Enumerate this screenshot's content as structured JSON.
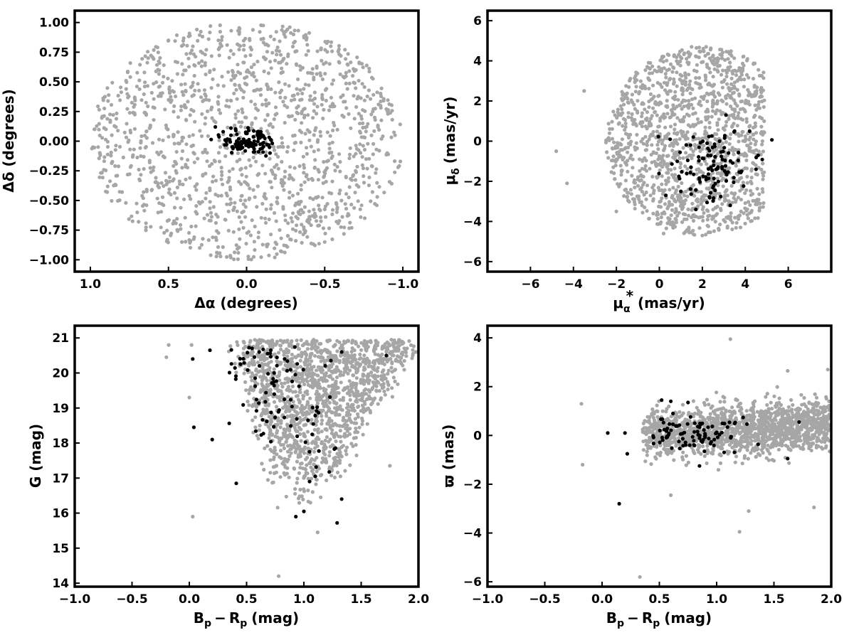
{
  "colors": {
    "field": "#a6a6a6",
    "member": "#000000",
    "axes": "#000000"
  },
  "chart_data": [
    {
      "type": "scatter",
      "xlabel": "Δα (degrees)",
      "ylabel": "Δδ (degrees)",
      "xlim": [
        1.1,
        -1.1
      ],
      "ylim": [
        -1.1,
        1.1
      ],
      "x_inverted": true,
      "xticks": [
        1.0,
        0.5,
        0.0,
        -0.5,
        -1.0
      ],
      "xtick_labels": [
        "1.0",
        "0.5",
        "0.0",
        "−0.5",
        "−1.0"
      ],
      "yticks": [
        -1.0,
        -0.75,
        -0.5,
        -0.25,
        0.0,
        0.25,
        0.5,
        0.75,
        1.0
      ],
      "ytick_labels": [
        "−1.00",
        "−0.75",
        "−0.50",
        "−0.25",
        "0.00",
        "0.25",
        "0.50",
        "0.75",
        "1.00"
      ],
      "grid": false,
      "series": [
        {
          "distribution": "uniform-disc",
          "center": [
            0.0,
            0.0
          ],
          "radius": [
            1.0,
            1.0
          ],
          "count": 1400,
          "color": "#a6a6a6",
          "points": [
            [
              0.9,
              0.1
            ],
            [
              -0.9,
              -0.1
            ],
            [
              0.5,
              0.85
            ],
            [
              -0.5,
              -0.85
            ],
            [
              0.3,
              -0.9
            ],
            [
              -0.3,
              0.9
            ],
            [
              0.7,
              -0.6
            ],
            [
              -0.7,
              0.6
            ],
            [
              0.95,
              -0.05
            ],
            [
              -0.95,
              0.05
            ]
          ]
        },
        {
          "distribution": "gaussian",
          "center": [
            0.0,
            0.0
          ],
          "spread": [
            0.08,
            0.05
          ],
          "count": 110,
          "color": "#000000",
          "points": [
            [
              0.0,
              0.0
            ],
            [
              0.05,
              0.02
            ],
            [
              -0.05,
              -0.03
            ],
            [
              0.1,
              0.05
            ],
            [
              -0.1,
              -0.06
            ],
            [
              0.15,
              0.08
            ],
            [
              -0.15,
              -0.1
            ],
            [
              0.2,
              0.12
            ],
            [
              0.1,
              0.11
            ],
            [
              -0.05,
              -0.09
            ]
          ]
        }
      ]
    },
    {
      "type": "scatter",
      "xlabel": "μα* (mas/yr)",
      "xlabel_main": "μ",
      "xlabel_sub": "α",
      "xlabel_sup": "*",
      "xlabel_unit": "(mas/yr)",
      "ylabel": "μδ (mas/yr)",
      "ylabel_main": "μ",
      "ylabel_sub": "δ",
      "ylabel_unit": "(mas/yr)",
      "xlim": [
        -8,
        8
      ],
      "ylim": [
        -6.5,
        6.5
      ],
      "xticks": [
        -6,
        -4,
        -2,
        0,
        2,
        4,
        6
      ],
      "xtick_labels": [
        "−6",
        "−4",
        "−2",
        "0",
        "2",
        "4",
        "6"
      ],
      "yticks": [
        -6,
        -4,
        -2,
        0,
        2,
        4,
        6
      ],
      "ytick_labels": [
        "−6",
        "−4",
        "−2",
        "0",
        "2",
        "4",
        "6"
      ],
      "grid": false,
      "series": [
        {
          "distribution": "clipped-disc",
          "center": [
            2.0,
            0.0
          ],
          "radius": [
            4.5,
            4.7
          ],
          "x_max": 4.9,
          "count": 1400,
          "color": "#a6a6a6",
          "points": [
            [
              -4.8,
              -0.5
            ],
            [
              -4.3,
              -2.1
            ],
            [
              1.5,
              4.7
            ],
            [
              2.0,
              -4.7
            ],
            [
              4.8,
              0.0
            ],
            [
              -3.5,
              2.5
            ],
            [
              -2.0,
              -3.5
            ],
            [
              0.0,
              3.5
            ],
            [
              0.2,
              -4.6
            ],
            [
              3.3,
              3.7
            ]
          ]
        },
        {
          "distribution": "gaussian",
          "center": [
            2.4,
            -1.2
          ],
          "spread": [
            0.9,
            0.9
          ],
          "count": 110,
          "color": "#000000",
          "points": [
            [
              2.4,
              -1.3
            ],
            [
              3.5,
              0.5
            ],
            [
              4.2,
              0.5
            ],
            [
              4.5,
              -1.4
            ],
            [
              0.3,
              -2.7
            ],
            [
              1.0,
              -2.5
            ],
            [
              1.7,
              -3.4
            ],
            [
              3.3,
              -3.2
            ],
            [
              3.1,
              1.3
            ],
            [
              4.6,
              -0.7
            ]
          ]
        }
      ]
    },
    {
      "type": "scatter",
      "xlabel": "Bp − Rp (mag)",
      "xlabel_B": "B",
      "xlabel_R": "R",
      "xlabel_sub": "p",
      "xlabel_minus": "−",
      "xlabel_unit": "(mag)",
      "ylabel": "G (mag)",
      "xlim": [
        -1.0,
        2.0
      ],
      "ylim": [
        13.9,
        21.35
      ],
      "xticks": [
        -1.0,
        -0.5,
        0.0,
        0.5,
        1.0,
        1.5,
        2.0
      ],
      "xtick_labels": [
        "−1.0",
        "−0.5",
        "0.0",
        "0.5",
        "1.0",
        "1.5",
        "2.0"
      ],
      "yticks": [
        14,
        15,
        16,
        17,
        18,
        19,
        20,
        21
      ],
      "ytick_labels": [
        "14",
        "15",
        "16",
        "17",
        "18",
        "19",
        "20",
        "21"
      ],
      "grid": false,
      "series": [
        {
          "distribution": "cmd-wedge",
          "count": 1600,
          "color": "#a6a6a6",
          "points": [
            [
              0.02,
              20.8
            ],
            [
              -0.18,
              20.8
            ],
            [
              -0.2,
              20.45
            ],
            [
              0.03,
              15.9
            ],
            [
              0.78,
              14.2
            ],
            [
              1.12,
              15.45
            ],
            [
              1.75,
              17.35
            ],
            [
              0.0,
              19.3
            ],
            [
              1.1,
              20.9
            ],
            [
              1.95,
              20.5
            ]
          ]
        },
        {
          "distribution": "cmd-members",
          "count": 100,
          "color": "#000000",
          "points": [
            [
              0.03,
              20.4
            ],
            [
              0.18,
              20.65
            ],
            [
              0.04,
              18.45
            ],
            [
              0.2,
              18.1
            ],
            [
              0.41,
              16.85
            ],
            [
              0.93,
              15.9
            ],
            [
              1.0,
              16.05
            ],
            [
              1.29,
              15.72
            ],
            [
              1.33,
              16.4
            ],
            [
              1.05,
              16.9
            ],
            [
              1.1,
              17.05
            ],
            [
              1.72,
              20.5
            ],
            [
              1.33,
              20.6
            ],
            [
              1.05,
              17.75
            ]
          ]
        }
      ]
    },
    {
      "type": "scatter",
      "xlabel": "Bp − Rp (mag)",
      "xlabel_B": "B",
      "xlabel_R": "R",
      "xlabel_sub": "p",
      "xlabel_minus": "−",
      "xlabel_unit": "(mag)",
      "ylabel": "ϖ (mas)",
      "xlim": [
        -1.0,
        2.0
      ],
      "ylim": [
        -6.2,
        4.5
      ],
      "xticks": [
        -1.0,
        -0.5,
        0.0,
        0.5,
        1.0,
        1.5,
        2.0
      ],
      "xtick_labels": [
        "−1.0",
        "−0.5",
        "0.0",
        "0.5",
        "1.0",
        "1.5",
        "2.0"
      ],
      "yticks": [
        -6,
        -4,
        -2,
        0,
        2,
        4
      ],
      "ytick_labels": [
        "−6",
        "−4",
        "−2",
        "0",
        "2",
        "4"
      ],
      "grid": false,
      "series": [
        {
          "distribution": "band",
          "count": 1600,
          "color": "#a6a6a6",
          "points": [
            [
              1.12,
              3.95
            ],
            [
              0.33,
              -5.8
            ],
            [
              -0.18,
              1.3
            ],
            [
              -0.17,
              -1.2
            ],
            [
              1.2,
              -3.95
            ],
            [
              1.28,
              -3.1
            ],
            [
              1.85,
              -2.95
            ],
            [
              1.62,
              2.65
            ],
            [
              1.97,
              2.7
            ],
            [
              0.6,
              -2.45
            ]
          ]
        },
        {
          "distribution": "band-members",
          "count": 100,
          "color": "#000000",
          "points": [
            [
              0.15,
              -2.8
            ],
            [
              0.05,
              0.1
            ],
            [
              0.2,
              0.1
            ],
            [
              0.22,
              -0.75
            ],
            [
              0.52,
              1.45
            ],
            [
              0.6,
              1.4
            ],
            [
              0.75,
              1.35
            ],
            [
              0.85,
              -1.25
            ],
            [
              1.62,
              -0.95
            ],
            [
              1.72,
              0.55
            ],
            [
              1.0,
              0.1
            ],
            [
              0.9,
              0.0
            ]
          ]
        }
      ]
    }
  ]
}
